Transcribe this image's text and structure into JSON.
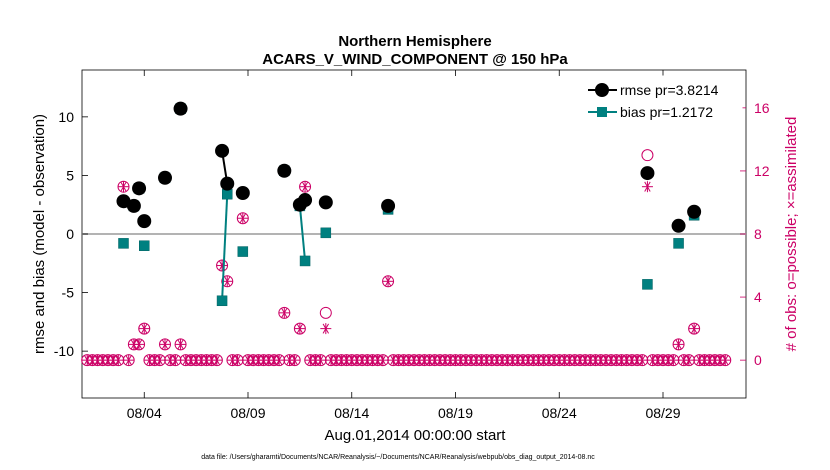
{
  "chart_data": {
    "type": "line",
    "title": "Northern Hemisphere",
    "subtitle": "ACARS_V_WIND_COMPONENT @ 150 hPa",
    "xlabel": "Aug.01,2014 00:00:00 start",
    "ylabel_left": "rmse and bias (model - observation)",
    "ylabel_right": "# of obs: o=possible; ×=assimilated",
    "footnote": "data file: /Users/gharamti/Documents/NCAR/Reanalysis/~/Documents/NCAR/Reanalysis/webpub/obs_diag_output_2014-08.nc",
    "x_range_days": [
      0,
      32
    ],
    "x_ticks": [
      {
        "day": 3,
        "label": "08/04"
      },
      {
        "day": 8,
        "label": "08/09"
      },
      {
        "day": 13,
        "label": "08/14"
      },
      {
        "day": 18,
        "label": "08/19"
      },
      {
        "day": 23,
        "label": "08/24"
      },
      {
        "day": 28,
        "label": "08/29"
      }
    ],
    "left_axis": {
      "ylim": [
        -14,
        14
      ],
      "ticks": [
        10,
        5,
        0,
        -5,
        -10
      ],
      "tick_labels": [
        "10",
        "5",
        "0",
        "-5",
        "-10"
      ]
    },
    "right_axis": {
      "ylim": [
        -2.4,
        18.4
      ],
      "ticks": [
        0,
        4,
        8,
        12,
        16
      ],
      "tick_labels": [
        "0",
        "4",
        "8",
        "12",
        "16"
      ],
      "color": "#cc0066"
    },
    "zero_line": true,
    "legend": {
      "position": "top-right",
      "entries": [
        "rmse pr=3.8214",
        "bias pr=1.2172"
      ]
    },
    "series": [
      {
        "name": "rmse",
        "color": "#000000",
        "marker": "circle",
        "points": [
          [
            2.0,
            2.8
          ],
          [
            2.5,
            2.4
          ],
          [
            2.75,
            3.9
          ],
          [
            3.0,
            1.1
          ],
          [
            4.0,
            4.8
          ],
          [
            4.75,
            10.7
          ],
          [
            6.75,
            7.1
          ],
          [
            7.0,
            4.3
          ],
          [
            7.75,
            3.5
          ],
          [
            9.75,
            5.4
          ],
          [
            10.5,
            2.5
          ],
          [
            10.75,
            2.9
          ],
          [
            11.75,
            2.7
          ],
          [
            14.75,
            2.4
          ],
          [
            27.25,
            5.2
          ],
          [
            28.75,
            0.7
          ],
          [
            29.5,
            1.9
          ]
        ],
        "segments": [
          [
            6.75,
            7.0
          ],
          [
            10.5,
            10.75
          ]
        ]
      },
      {
        "name": "bias",
        "color": "#008080",
        "marker": "square",
        "points": [
          [
            2.0,
            -0.8
          ],
          [
            2.5,
            2.4
          ],
          [
            2.75,
            3.9
          ],
          [
            3.0,
            -1.0
          ],
          [
            4.0,
            4.8
          ],
          [
            4.75,
            10.7
          ],
          [
            6.75,
            -5.7
          ],
          [
            7.0,
            3.4
          ],
          [
            7.75,
            -1.5
          ],
          [
            9.75,
            5.4
          ],
          [
            10.5,
            2.4
          ],
          [
            10.75,
            -2.3
          ],
          [
            11.75,
            0.1
          ],
          [
            14.75,
            2.1
          ],
          [
            27.25,
            -4.3
          ],
          [
            28.75,
            -0.8
          ],
          [
            29.5,
            1.6
          ]
        ],
        "segments": [
          [
            6.75,
            7.0
          ],
          [
            10.5,
            10.75
          ]
        ]
      },
      {
        "name": "obs possible",
        "color": "#cc0066",
        "marker": "open-circle",
        "axis": "right",
        "nonzero": [
          [
            2.0,
            11
          ],
          [
            2.5,
            1
          ],
          [
            2.75,
            1
          ],
          [
            3.0,
            2
          ],
          [
            4.0,
            1
          ],
          [
            4.75,
            1
          ],
          [
            6.75,
            6
          ],
          [
            7.0,
            5
          ],
          [
            7.75,
            9
          ],
          [
            9.75,
            3
          ],
          [
            10.5,
            2
          ],
          [
            10.75,
            11
          ],
          [
            11.75,
            3
          ],
          [
            14.75,
            5
          ],
          [
            27.25,
            13
          ],
          [
            28.75,
            1
          ],
          [
            29.5,
            2
          ]
        ]
      },
      {
        "name": "obs assimilated",
        "color": "#cc0066",
        "marker": "asterisk",
        "axis": "right",
        "nonzero": [
          [
            2.0,
            11
          ],
          [
            2.5,
            1
          ],
          [
            2.75,
            1
          ],
          [
            3.0,
            2
          ],
          [
            4.0,
            1
          ],
          [
            4.75,
            1
          ],
          [
            6.75,
            6
          ],
          [
            7.0,
            5
          ],
          [
            7.75,
            9
          ],
          [
            9.75,
            3
          ],
          [
            10.5,
            2
          ],
          [
            10.75,
            11
          ],
          [
            11.75,
            2
          ],
          [
            14.75,
            5
          ],
          [
            27.25,
            11
          ],
          [
            28.75,
            1
          ],
          [
            29.5,
            2
          ]
        ]
      }
    ],
    "obs_zero_days_step": 0.25,
    "obs_zero_days_range": [
      0.25,
      31.0
    ]
  }
}
